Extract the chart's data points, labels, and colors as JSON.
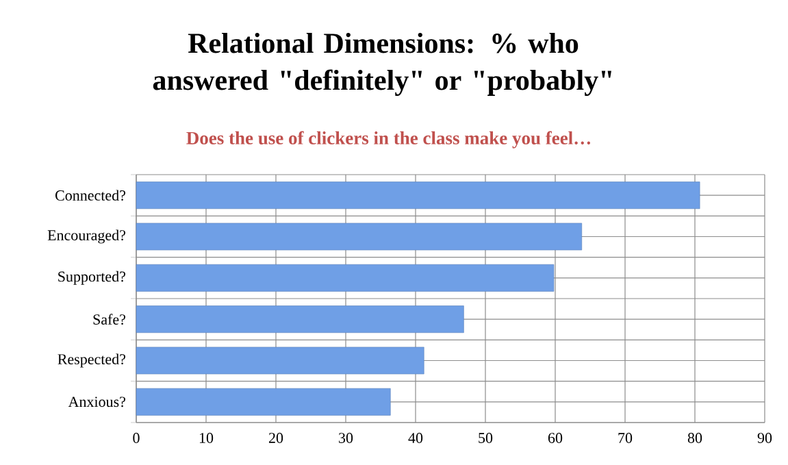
{
  "chart_data": {
    "type": "bar",
    "orientation": "horizontal",
    "title": "Relational Dimensions:  % who answered \"definitely\" or \"probably\"",
    "subtitle": "Does the use of clickers in the class make you feel…",
    "categories": [
      "Connected?",
      "Encouraged?",
      "Supported?",
      "Safe?",
      "Respected?",
      "Anxious?"
    ],
    "values": [
      80.7,
      63.8,
      59.8,
      46.9,
      41.2,
      36.4
    ],
    "color": "#6f9fe6",
    "xlim": [
      0,
      90
    ],
    "xticks": [
      0,
      10,
      20,
      30,
      40,
      50,
      60,
      70,
      80,
      90
    ],
    "grid": true
  }
}
